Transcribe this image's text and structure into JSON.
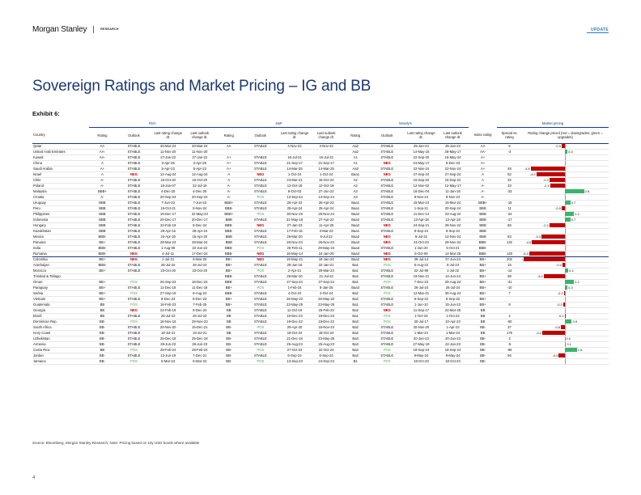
{
  "header": {
    "brand": "Morgan Stanley",
    "section": "RESEARCH",
    "tag": "UPDATE"
  },
  "title": "Sovereign Ratings and Market Pricing – IG and BB",
  "exhibit": "Exhibit 6:",
  "groups": [
    "Fitch",
    "S&P",
    "Moody's",
    "Market pricing"
  ],
  "columns": [
    "Country",
    "Rating",
    "Outlook",
    "Last rating change dt.",
    "Last outlook change dt.",
    "Rating",
    "Outlook",
    "Last rating change dt.",
    "Last outlook change dt.",
    "Rating",
    "Outlook",
    "Last rating change dt.",
    "Last outlook change dt.",
    "Index rating",
    "Spread vs. rating",
    "Rating change priced (red = downgrades; green = upgrades)"
  ],
  "colors": {
    "navy": "#1c3a72",
    "neg": "#c00000",
    "pos": "#4aa84a",
    "bar_red": "#c00000",
    "bar_green": "#3bb36a"
  },
  "rows": [
    [
      "Qatar",
      "AA",
      "STABLE",
      "20-Mar-24",
      "20-Mar-24",
      "AA",
      "STABLE",
      "4-Nov-22",
      "4-Nov-22",
      "Aa2",
      "STABLE",
      "25-Jan-24",
      "25-Jan-24",
      "AA",
      "5",
      "-0.5"
    ],
    [
      "United Arab Emirates",
      "AA-",
      "STABLE",
      "11-Nov-20",
      "11-Nov-20",
      "",
      "",
      "",
      "",
      "Aa2",
      "STABLE",
      "14-May-16",
      "26-May-17",
      "AA-",
      "-3",
      "0.3"
    ],
    [
      "Kuwait",
      "AA-",
      "STABLE",
      "27-Jan-22",
      "27-Jan-22",
      "A+",
      "STABLE",
      "16-Jul-21",
      "15-Jul-22",
      "A1",
      "STABLE",
      "22-Sep-20",
      "16-May-24",
      "A+",
      "",
      ""
    ],
    [
      "China",
      "A",
      "STABLE",
      "3-Apr-25",
      "3-Apr-25",
      "A+",
      "STABLE",
      "21-Sep-17",
      "21-Sep-17",
      "A1",
      "NEG",
      "24-May-17",
      "5-Dec-23",
      "A+",
      "",
      ""
    ],
    [
      "Saudi Arabia",
      "A+",
      "STABLE",
      "5-Apr-23",
      "5-Apr-23",
      "A+",
      "STABLE",
      "14-Mar-25",
      "14-Mar-25",
      "Aa3",
      "STABLE",
      "22-Nov-24",
      "22-Nov-24",
      "A+",
      "48",
      "-4.8"
    ],
    [
      "Israel",
      "A",
      "NEG",
      "12-Aug-24",
      "12-Aug-24",
      "A",
      "NEG",
      "1-Oct-24",
      "1-Oct-24",
      "Baa1",
      "NEG",
      "27-Sep-24",
      "27-Sep-24",
      "A",
      "82",
      "-4.0"
    ],
    [
      "Chile",
      "A-",
      "STABLE",
      "15-Oct-20",
      "15-Oct-20",
      "A",
      "STABLE",
      "24-Mar-21",
      "15-Oct-24",
      "A2",
      "STABLE",
      "15-Sep-22",
      "15-Sep-22",
      "A",
      "32",
      "-2.2"
    ],
    [
      "Poland",
      "A-",
      "STABLE",
      "18-Jan-07",
      "22-Jul-16",
      "A-",
      "STABLE",
      "12-Oct-18",
      "12-Oct-18",
      "A2",
      "STABLE",
      "12-Nov-02",
      "12-May-17",
      "A-",
      "33",
      "-2.1"
    ],
    [
      "Malaysia",
      "BBB+",
      "STABLE",
      "4-Dec-20",
      "4-Dec-20",
      "A-",
      "STABLE",
      "8-Oct-03",
      "27-Jun-22",
      "A3",
      "STABLE",
      "16-Dec-04",
      "11-Jan-16",
      "A-",
      "-33",
      "2.6"
    ],
    [
      "Croatia",
      "A-",
      "STABLE",
      "20-Sep-24",
      "20-Sep-24",
      "A-",
      "POS",
      "13-Sep-24",
      "13-Sep-24",
      "A3",
      "STABLE",
      "8-Nov-24",
      "8-Nov-24",
      "A-",
      "",
      ""
    ],
    [
      "Uruguay",
      "BBB",
      "STABLE",
      "7-Jun-23",
      "7-Jun-23",
      "BBB+",
      "STABLE",
      "26-Apr-23",
      "26-Apr-23",
      "Baa1",
      "STABLE",
      "15-Mar-24",
      "15-Mar-24",
      "BBB+",
      "-15",
      "0.7"
    ],
    [
      "Peru",
      "BBB",
      "STABLE",
      "15-Oct-21",
      "5-Nov-24",
      "BBB-",
      "STABLE",
      "25-Apr-24",
      "25-Apr-24",
      "Baa1",
      "STABLE",
      "1-Sep-21",
      "20-Sep-24",
      "BBB",
      "11",
      "-0.5"
    ],
    [
      "Philippines",
      "BBB",
      "STABLE",
      "19-Dec-17",
      "22-May-23",
      "BBB+",
      "POS",
      "30-Nov-19",
      "25-Nov-24",
      "Baa2",
      "STABLE",
      "11-Dec-14",
      "23-Aug-24",
      "BBB",
      "-24",
      "1.2"
    ],
    [
      "Indonesia",
      "BBB",
      "STABLE",
      "20-Dec-17",
      "20-Dec-17",
      "BBB",
      "STABLE",
      "31-May-19",
      "27-Apr-22",
      "Baa2",
      "STABLE",
      "13-Apr-18",
      "13-Apr-18",
      "BBB",
      "-17",
      "0.7"
    ],
    [
      "Hungary",
      "BBB",
      "STABLE",
      "22-Feb-19",
      "6-Dec-24",
      "BBB-",
      "NEG",
      "27-Jan-23",
      "11-Apr-25",
      "Baa2",
      "NEG",
      "24-Sep-21",
      "29-Nov-24",
      "BBB",
      "56",
      "-2.2"
    ],
    [
      "Kazakhstan",
      "BBB",
      "STABLE",
      "29-Apr-16",
      "29-Apr-16",
      "BBB-",
      "STABLE",
      "17-Feb-16",
      "3-Mar-23",
      "Baa1",
      "STABLE",
      "9-Sep-24",
      "9-Sep-24",
      "BBB",
      "",
      ""
    ],
    [
      "Mexico",
      "BBB-",
      "STABLE",
      "15-Apr-20",
      "15-Apr-20",
      "BBB",
      "STABLE",
      "26-Mar-20",
      "6-Jul-22",
      "Baa2",
      "NEG",
      "8-Jul-22",
      "14-Nov-24",
      "BBB",
      "83",
      "-3.3"
    ],
    [
      "Panama",
      "BB+",
      "STABLE",
      "28-Mar-24",
      "28-Mar-24",
      "BBB",
      "STABLE",
      "26-Nov-24",
      "26-Nov-24",
      "Baa3",
      "NEG",
      "31-Oct-23",
      "29-Nov-24",
      "BBB-",
      "132",
      "-4.6"
    ],
    [
      "India",
      "BBB-",
      "STABLE",
      "1-Aug-06",
      "10-Jun-22",
      "BBB-",
      "POS",
      "25-Feb-11",
      "29-May-24",
      "Baa3",
      "STABLE",
      "1-Jun-20",
      "5-Oct-21",
      "BBB-",
      "",
      ""
    ],
    [
      "Romania",
      "BBB-",
      "NEG",
      "4-Jul-11",
      "17-Dec-24",
      "BBB-",
      "NEG",
      "16-May-14",
      "24-Jan-25",
      "Baa3",
      "NEG",
      "6-Oct-06",
      "14-Mar-25",
      "BBB-",
      "140",
      "-5.0"
    ],
    [
      "Colombia",
      "BB+",
      "NEG",
      "1-Jul-21",
      "6-Mar-25",
      "BB+",
      "NEG",
      "19-May-21",
      "18-Jan-24",
      "Baa2",
      "NEG",
      "28-Jul-14",
      "27-Jun-24",
      "BB+",
      "202",
      "-5.8"
    ],
    [
      "Azerbaijan",
      "BBB-",
      "STABLE",
      "26-Jul-24",
      "26-Jul-24",
      "BB+",
      "STABLE",
      "29-Jan-16",
      "22-Jan-21",
      "Ba1",
      "POS",
      "5-Aug-22",
      "5-Jul-24",
      "BB+",
      "15",
      "-0.4"
    ],
    [
      "Morocco",
      "BB+",
      "STABLE",
      "23-Oct-20",
      "23-Oct-20",
      "BB+",
      "POS",
      "2-Apr-21",
      "29-Mar-24",
      "Ba1",
      "STABLE",
      "22-Jul-99",
      "1-Jul-22",
      "BB+",
      "-14",
      "0.4"
    ],
    [
      "Trinidad & Tobago",
      "",
      "",
      "",
      "",
      "BBB-",
      "STABLE",
      "26-Mar-20",
      "21-Jul-22",
      "Ba2",
      "STABLE",
      "19-Nov-21",
      "14-Jun-24",
      "BB+",
      "99",
      "-3.0"
    ],
    [
      "Oman",
      "BB+",
      "POS",
      "25-Sep-23",
      "18-Dec-24",
      "BBB-",
      "STABLE",
      "27-Sep-24",
      "27-Sep-24",
      "Ba1",
      "POS",
      "7-Dec-23",
      "29-Aug-24",
      "BB+",
      "-41",
      "1.2"
    ],
    [
      "Paraguay",
      "BB+",
      "STABLE",
      "11-Dec-18",
      "11-Dec-18",
      "BB+",
      "POS",
      "1-Feb-24",
      "8-Jan-25",
      "Baa3",
      "STABLE",
      "26-Jul-24",
      "26-Jul-24",
      "BB+",
      "-10",
      "0.3"
    ],
    [
      "Serbia",
      "BB+",
      "POS",
      "27-Sep-19",
      "9-Aug-24",
      "BBB-",
      "STABLE",
      "4-Oct-24",
      "4-Oct-24",
      "Ba2",
      "POS",
      "12-Mar-21",
      "30-Aug-24",
      "BB+",
      "7",
      "-0.2"
    ],
    [
      "Vietnam",
      "BB+",
      "STABLE",
      "8-Dec-23",
      "8-Dec-23",
      "BB+",
      "STABLE",
      "26-May-22",
      "26-May-22",
      "Ba2",
      "STABLE",
      "6-Sep-22",
      "6-Sep-22",
      "BB+",
      "",
      ""
    ],
    [
      "Guatemala",
      "BB",
      "POS",
      "16-Feb-23",
      "7-Feb-25",
      "BB+",
      "STABLE",
      "23-May-25",
      "23-May-25",
      "Ba1",
      "STABLE",
      "1-Jun-10",
      "15-Jun-22",
      "BB+",
      "8",
      "-0.3"
    ],
    [
      "Georgia",
      "BB",
      "NEG",
      "22-Feb-19",
      "6-Dec-24",
      "BB",
      "STABLE",
      "11-Oct-19",
      "25-Feb-22",
      "Ba2",
      "NEG",
      "11-Sep-17",
      "24-Mar-25",
      "BB",
      "",
      ""
    ],
    [
      "Brazil",
      "BB",
      "STABLE",
      "26-Jul-23",
      "26-Jul-23",
      "BB",
      "STABLE",
      "19-Dec-23",
      "19-Dec-23",
      "Ba1",
      "POS",
      "1-Oct-24",
      "1-Oct-24",
      "BB",
      "4",
      "-0.1"
    ],
    [
      "Dominican Rep.",
      "BB-",
      "POS",
      "18-Nov-16",
      "29-Nov-23",
      "BB",
      "STABLE",
      "19-Dec-22",
      "19-Dec-22",
      "Ba3",
      "POS",
      "20-Jul-17",
      "10-Apr-23",
      "BB",
      "-50",
      "0.9"
    ],
    [
      "South Africa",
      "BB-",
      "STABLE",
      "20-Nov-20",
      "15-Dec-21",
      "BB-",
      "POS",
      "29-Apr-20",
      "15-Nov-24",
      "Ba2",
      "STABLE",
      "20-Nov-20",
      "1-Apr-22",
      "BB-",
      "37",
      "-0.6"
    ],
    [
      "Ivory Coast",
      "BB-",
      "STABLE",
      "19-Jul-21",
      "19-Jul-21",
      "BB",
      "STABLE",
      "18-Oct-24",
      "18-Oct-24",
      "Ba2",
      "STABLE",
      "1-Mar-24",
      "1-Mar-24",
      "BB",
      "176",
      "-3.2"
    ],
    [
      "Uzbekistan",
      "BB-",
      "STABLE",
      "25-Dec-18",
      "25-Dec-18",
      "BB-",
      "STABLE",
      "21-Dec-18",
      "23-May-25",
      "Ba3",
      "STABLE",
      "20-Jan-23",
      "20-Jan-23",
      "BB-",
      "3",
      "0.0"
    ],
    [
      "Armenia",
      "BB-",
      "STABLE",
      "28-Jun-23",
      "28-Jun-23",
      "BB-",
      "STABLE",
      "25-Aug-23",
      "25-Aug-23",
      "Ba3",
      "STABLE",
      "27-May-19",
      "22-Jan-23",
      "BB-",
      "-5",
      "0.1"
    ],
    [
      "Costa Rica",
      "BB",
      "POS",
      "28-Feb-24",
      "28-Feb-24",
      "BB-",
      "POS",
      "27-Oct-23",
      "22-Oct-24",
      "Ba3",
      "POS",
      "18-Sep-24",
      "18-Sep-24",
      "BB-",
      "-85",
      "1.6"
    ],
    [
      "Jordan",
      "BB-",
      "STABLE",
      "13-Jun-19",
      "7-Dec-21",
      "BB-",
      "STABLE",
      "6-Sep-24",
      "6-Sep-24",
      "Ba3",
      "STABLE",
      "9-May-24",
      "9-May-24",
      "BB-",
      "56",
      "-0.9"
    ],
    [
      "Jamaica",
      "BB-",
      "POS",
      "5-Mar-24",
      "5-Mar-24",
      "BB-",
      "POS",
      "13-Sep-23",
      "24-Sep-24",
      "B1",
      "POS",
      "18-Oct-23",
      "18-Oct-23",
      "BB-",
      "",
      ""
    ]
  ],
  "source": "Source: Bloomberg, Morgan Stanley Research; Note: Pricing based on 10y USD bonds where available",
  "page_number": "4"
}
